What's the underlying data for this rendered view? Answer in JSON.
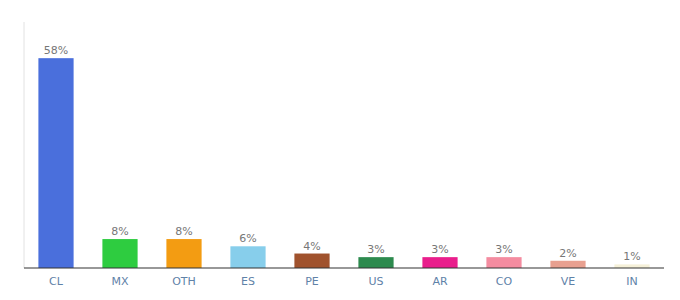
{
  "chart_data": {
    "type": "bar",
    "categories": [
      "CL",
      "MX",
      "OTH",
      "ES",
      "PE",
      "US",
      "AR",
      "CO",
      "VE",
      "IN"
    ],
    "values": [
      58,
      8,
      8,
      6,
      4,
      3,
      3,
      3,
      2,
      1
    ],
    "value_labels": [
      "58%",
      "8%",
      "8%",
      "6%",
      "4%",
      "3%",
      "3%",
      "3%",
      "2%",
      "1%"
    ],
    "colors": [
      "#4a6fdc",
      "#2ecc40",
      "#f39c12",
      "#87ceeb",
      "#a0522d",
      "#2d8a4e",
      "#e91e8c",
      "#f48ca0",
      "#e8a090",
      "#f5f0d8"
    ],
    "ylim": [
      0,
      68
    ],
    "data_labels": true,
    "tick_labels": "x",
    "grid": false
  }
}
